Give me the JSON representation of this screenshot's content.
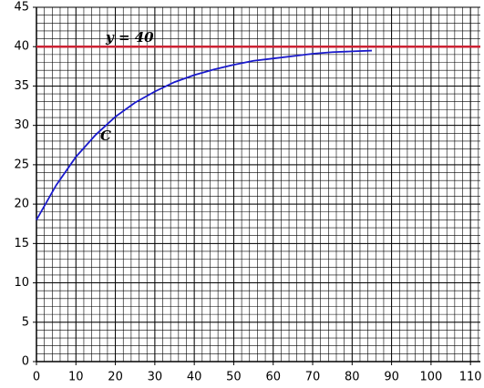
{
  "chart_data": {
    "type": "line",
    "xlim": [
      0,
      112.5
    ],
    "ylim": [
      0,
      45
    ],
    "xticks": [
      0,
      10,
      20,
      30,
      40,
      50,
      60,
      70,
      80,
      90,
      100,
      110
    ],
    "yticks": [
      0,
      5,
      10,
      15,
      20,
      25,
      30,
      35,
      40,
      45
    ],
    "grid": true,
    "series": [
      {
        "name": "C",
        "color": "#1a1acc",
        "x": [
          0,
          5,
          10,
          15,
          20,
          25,
          30,
          35,
          40,
          45,
          50,
          55,
          60,
          65,
          70,
          75,
          80,
          85
        ],
        "values": [
          18,
          22.4,
          26,
          28.8,
          31.1,
          32.9,
          34.3,
          35.5,
          36.4,
          37.1,
          37.7,
          38.2,
          38.5,
          38.8,
          39.1,
          39.3,
          39.4,
          39.5
        ]
      },
      {
        "name": "y = 40",
        "color": "#cc2233",
        "x": [
          0,
          112.5
        ],
        "values": [
          40,
          40
        ]
      }
    ]
  }
}
